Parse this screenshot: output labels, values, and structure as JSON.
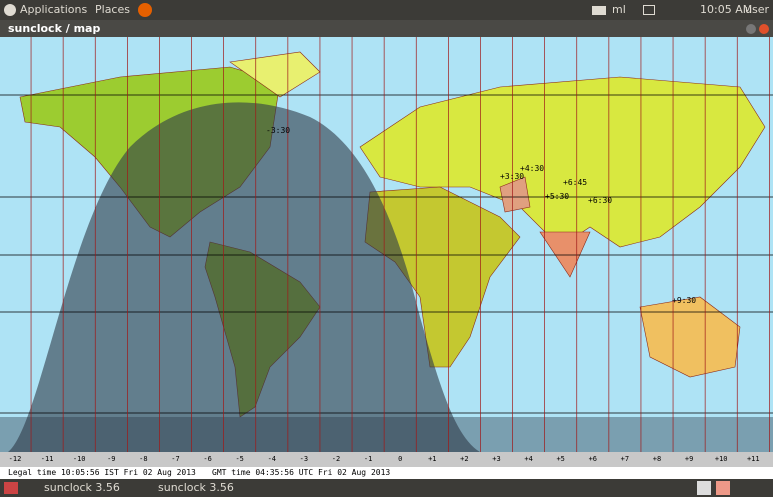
{
  "panel": {
    "menus": [
      "Applications",
      "Places"
    ],
    "keyboard": "ml",
    "clock": "10:05 AM",
    "user": "user"
  },
  "window": {
    "title": "sunclock / map"
  },
  "map": {
    "offsets": [
      "-3:30",
      "+3:30",
      "+4:30",
      "+6:45",
      "+5:30",
      "+6:30",
      "+9:30"
    ],
    "zones": [
      "-12",
      "-11",
      "-10",
      "-9",
      "-8",
      "-7",
      "-6",
      "-5",
      "-4",
      "-3",
      "-2",
      "-1",
      "0",
      "+1",
      "+2",
      "+3",
      "+4",
      "+5",
      "+6",
      "+7",
      "+8",
      "+9",
      "+10",
      "+11"
    ]
  },
  "status": {
    "legal": "Legal time 10:05:56 IST Fri 02 Aug 2013",
    "gmt": "GMT time 04:35:56 UTC Fri 02 Aug 2013"
  },
  "taskbar": {
    "items": [
      "sunclock 3.56",
      "sunclock 3.56"
    ]
  }
}
